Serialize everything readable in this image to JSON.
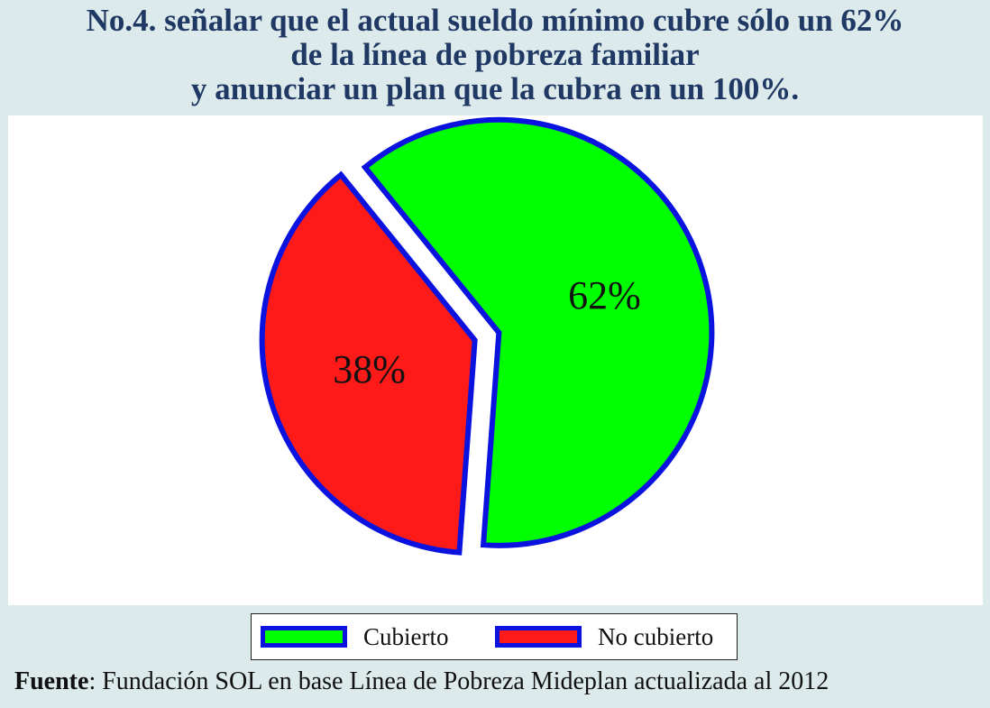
{
  "title": {
    "line1": "No.4. señalar que el actual sueldo mínimo cubre sólo un 62%",
    "line2": "de la línea de pobreza familiar",
    "line3": "y anunciar un plan que la cubra en un 100%."
  },
  "chart_data": {
    "type": "pie",
    "slices": [
      {
        "name": "Cubierto",
        "value": 62,
        "label": "62%",
        "color": "#00ff00"
      },
      {
        "name": "No cubierto",
        "value": 38,
        "label": "38%",
        "color": "#ff1a1a"
      }
    ],
    "outline_color": "#0a12e0",
    "exploded": true,
    "legend_position": "bottom"
  },
  "legend": {
    "items": [
      {
        "label": "Cubierto",
        "color": "#00ff00"
      },
      {
        "label": "No cubierto",
        "color": "#ff1a1a"
      }
    ]
  },
  "source": {
    "prefix": "Fuente",
    "text": ": Fundación SOL en base Línea de Pobreza Mideplan actualizada al 2012"
  }
}
